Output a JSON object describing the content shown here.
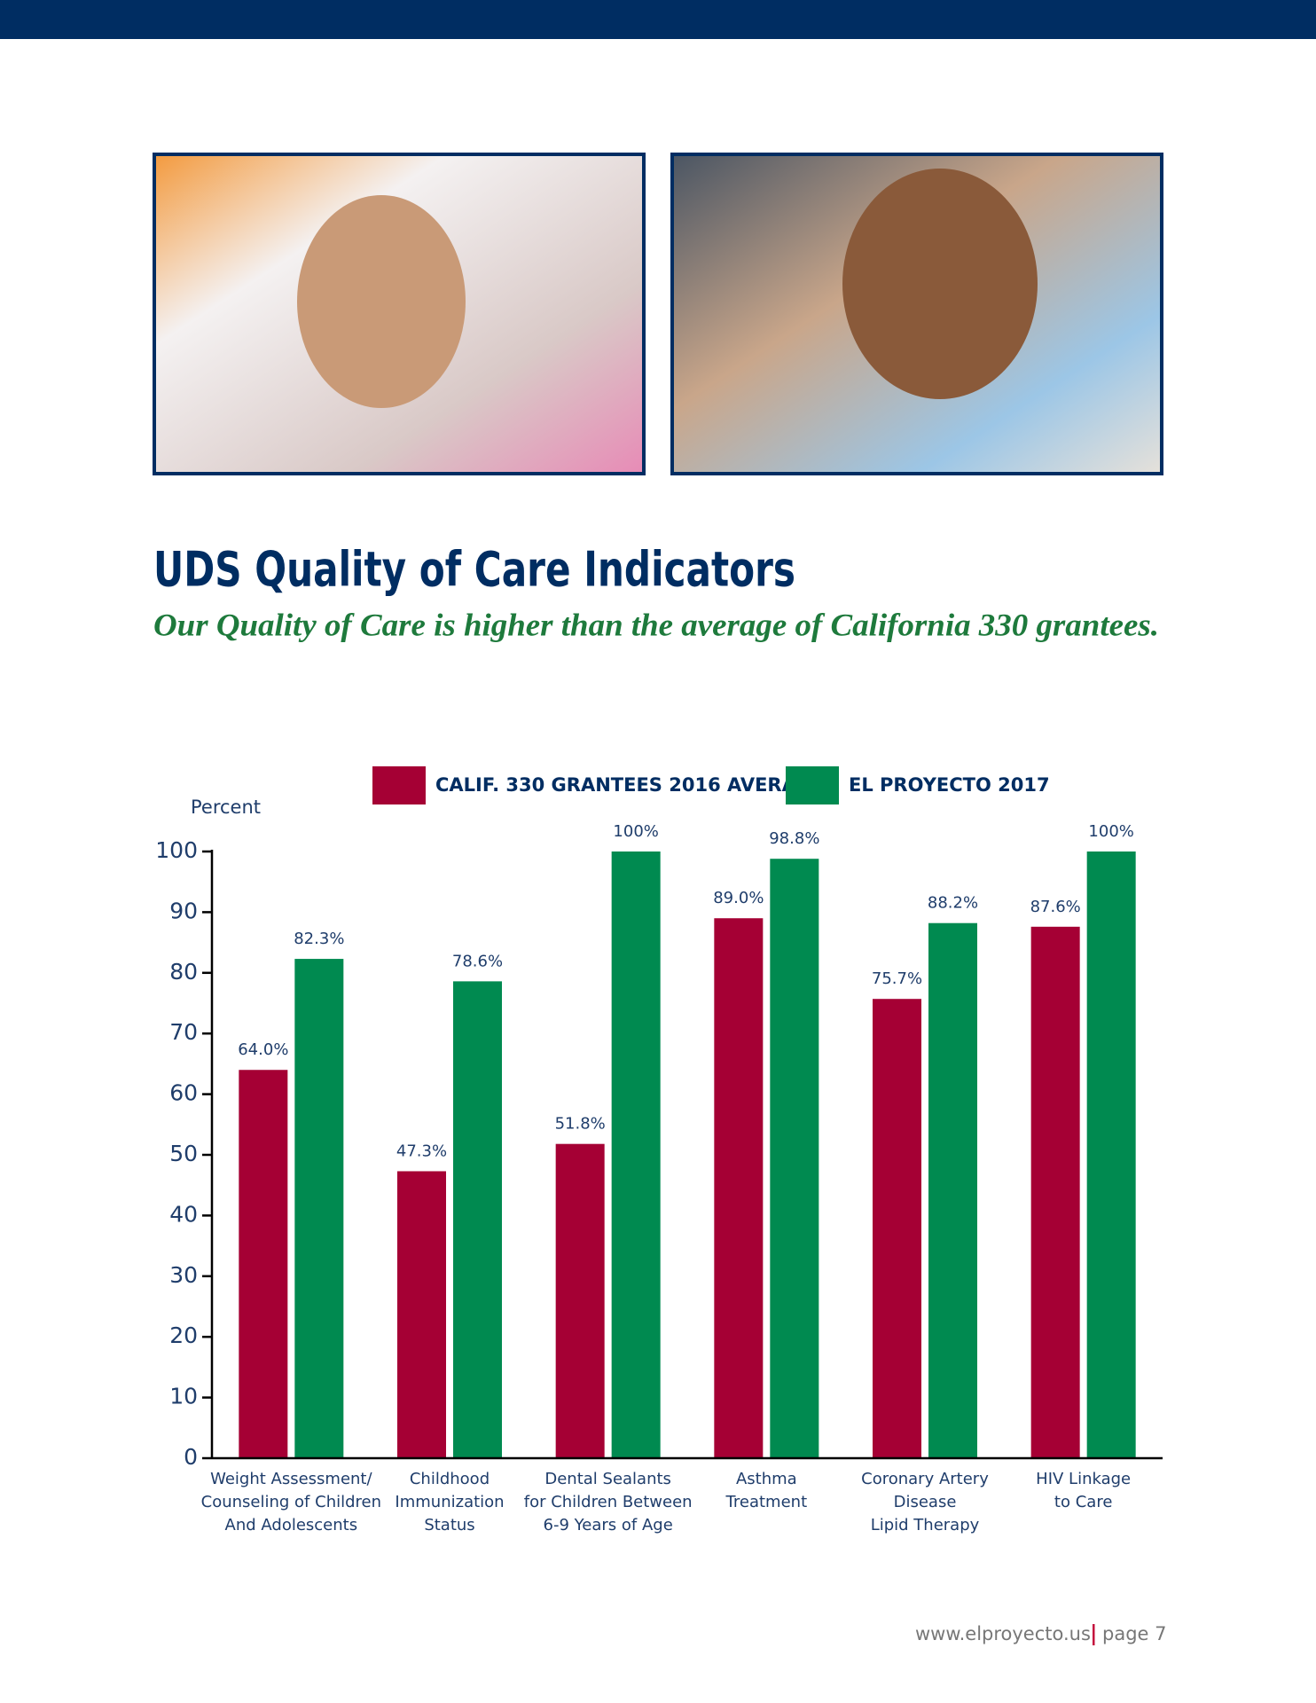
{
  "chart_data": {
    "type": "bar",
    "title": "UDS Quality of Care Indicators",
    "subtitle": "Our Quality of Care is higher than the average of California 330 grantees.",
    "y_label": "Percent",
    "categories": [
      [
        "Weight Assessment/",
        "Counseling of Children",
        "And Adolescents"
      ],
      [
        "Childhood",
        "Immunization",
        "Status"
      ],
      [
        "Dental Sealants",
        "for Children Between",
        "6-9 Years of Age"
      ],
      [
        "Asthma",
        "Treatment"
      ],
      [
        "Coronary Artery",
        "Disease",
        "Lipid Therapy"
      ],
      [
        "HIV Linkage",
        "to Care"
      ]
    ],
    "series": [
      {
        "name": "CALIF. 330 GRANTEES 2016 AVERAGE",
        "color": "#a50034",
        "values": [
          64.0,
          47.3,
          51.8,
          89.0,
          75.7,
          87.6
        ],
        "value_labels": [
          "64.0%",
          "47.3%",
          "51.8%",
          "89.0%",
          "75.7%",
          "87.6%"
        ]
      },
      {
        "name": "EL PROYECTO 2017",
        "color": "#008a50",
        "values": [
          82.3,
          78.6,
          100,
          98.8,
          88.2,
          100
        ],
        "value_labels": [
          "82.3%",
          "78.6%",
          "100%",
          "98.8%",
          "88.2%",
          "100%"
        ]
      }
    ],
    "ylim": [
      0,
      100
    ],
    "yticks": [
      0,
      10,
      20,
      30,
      40,
      50,
      60,
      70,
      80,
      90,
      100
    ],
    "grid": false
  },
  "footer": {
    "url": "www.elproyecto.us",
    "page": "page 7"
  }
}
